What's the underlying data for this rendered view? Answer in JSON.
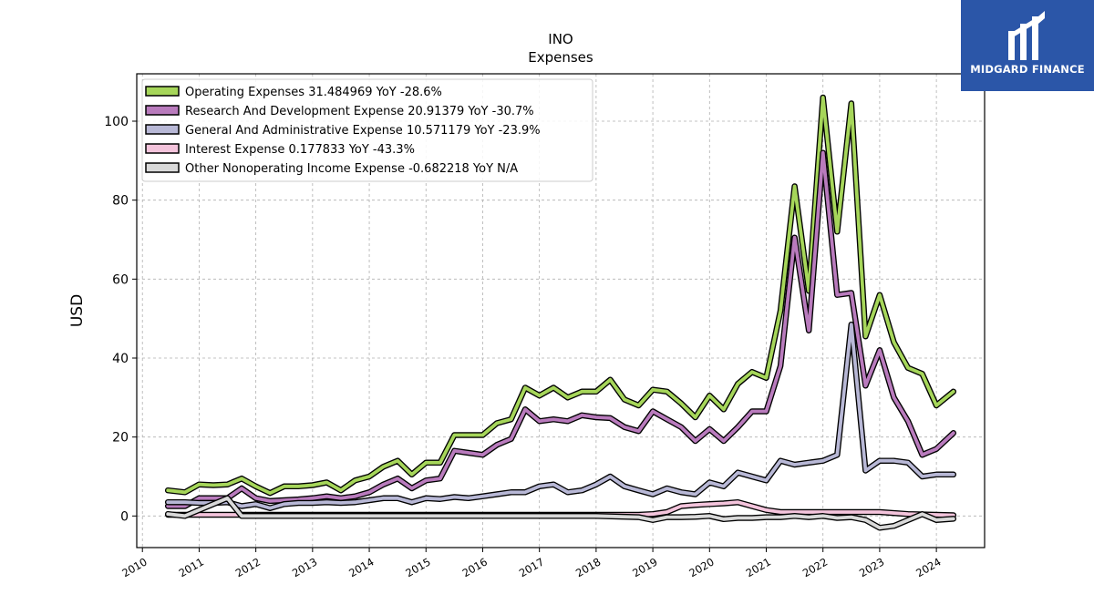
{
  "brand": {
    "name": "MIDGARD FINANCE",
    "color": "#2b56a8"
  },
  "chart_data": {
    "type": "line",
    "title": "INO",
    "subtitle": "Expenses",
    "ylabel": "USD",
    "xlabel": "",
    "xlim": [
      2009.9,
      2024.85
    ],
    "ylim": [
      -8,
      112
    ],
    "yticks": [
      0,
      20,
      40,
      60,
      80,
      100
    ],
    "xticks": [
      "2010",
      "2011",
      "2012",
      "2013",
      "2014",
      "2015",
      "2016",
      "2017",
      "2018",
      "2019",
      "2020",
      "2021",
      "2022",
      "2023",
      "2024"
    ],
    "grid": true,
    "legend_position": "top-left",
    "series": [
      {
        "name": "Operating Expenses  31.484969 YoY -28.6%",
        "color": "#a6d65a",
        "points": [
          [
            2010.45,
            6.5
          ],
          [
            2010.75,
            6.0
          ],
          [
            2011.0,
            8.0
          ],
          [
            2011.25,
            7.8
          ],
          [
            2011.5,
            8.0
          ],
          [
            2011.75,
            9.5
          ],
          [
            2012.0,
            7.5
          ],
          [
            2012.25,
            5.8
          ],
          [
            2012.5,
            7.5
          ],
          [
            2012.75,
            7.5
          ],
          [
            2013.0,
            7.8
          ],
          [
            2013.25,
            8.5
          ],
          [
            2013.5,
            6.5
          ],
          [
            2013.75,
            9.0
          ],
          [
            2014.0,
            10.0
          ],
          [
            2014.25,
            12.5
          ],
          [
            2014.5,
            14.0
          ],
          [
            2014.75,
            10.5
          ],
          [
            2015.0,
            13.5
          ],
          [
            2015.25,
            13.5
          ],
          [
            2015.5,
            20.5
          ],
          [
            2015.75,
            20.5
          ],
          [
            2016.0,
            20.5
          ],
          [
            2016.25,
            23.5
          ],
          [
            2016.5,
            24.5
          ],
          [
            2016.75,
            32.5
          ],
          [
            2017.0,
            30.5
          ],
          [
            2017.25,
            32.5
          ],
          [
            2017.5,
            30.0
          ],
          [
            2017.75,
            31.5
          ],
          [
            2018.0,
            31.5
          ],
          [
            2018.25,
            34.5
          ],
          [
            2018.5,
            29.5
          ],
          [
            2018.75,
            28.0
          ],
          [
            2019.0,
            32.0
          ],
          [
            2019.25,
            31.5
          ],
          [
            2019.5,
            28.5
          ],
          [
            2019.75,
            25.0
          ],
          [
            2020.0,
            30.5
          ],
          [
            2020.25,
            27.0
          ],
          [
            2020.5,
            33.5
          ],
          [
            2020.75,
            36.5
          ],
          [
            2021.0,
            35.0
          ],
          [
            2021.25,
            52.0
          ],
          [
            2021.5,
            83.5
          ],
          [
            2021.75,
            57.0
          ],
          [
            2022.0,
            106.0
          ],
          [
            2022.25,
            72.0
          ],
          [
            2022.5,
            104.5
          ],
          [
            2022.75,
            45.5
          ],
          [
            2023.0,
            56.0
          ],
          [
            2023.25,
            44.0
          ],
          [
            2023.5,
            37.5
          ],
          [
            2023.75,
            36.0
          ],
          [
            2024.0,
            28.0
          ],
          [
            2024.3,
            31.5
          ]
        ]
      },
      {
        "name": "Research And Development Expense  20.91379 YoY -30.7%",
        "color": "#b97bbd",
        "points": [
          [
            2010.45,
            2.5
          ],
          [
            2010.75,
            2.5
          ],
          [
            2011.0,
            4.5
          ],
          [
            2011.25,
            4.5
          ],
          [
            2011.5,
            4.5
          ],
          [
            2011.75,
            7.0
          ],
          [
            2012.0,
            4.5
          ],
          [
            2012.25,
            3.8
          ],
          [
            2012.5,
            4.0
          ],
          [
            2012.75,
            4.2
          ],
          [
            2013.0,
            4.5
          ],
          [
            2013.25,
            5.0
          ],
          [
            2013.5,
            4.5
          ],
          [
            2013.75,
            5.0
          ],
          [
            2014.0,
            6.0
          ],
          [
            2014.25,
            8.0
          ],
          [
            2014.5,
            9.5
          ],
          [
            2014.75,
            7.0
          ],
          [
            2015.0,
            9.0
          ],
          [
            2015.25,
            9.5
          ],
          [
            2015.5,
            16.5
          ],
          [
            2015.75,
            16.0
          ],
          [
            2016.0,
            15.5
          ],
          [
            2016.25,
            18.0
          ],
          [
            2016.5,
            19.5
          ],
          [
            2016.75,
            27.0
          ],
          [
            2017.0,
            24.0
          ],
          [
            2017.25,
            24.5
          ],
          [
            2017.5,
            24.0
          ],
          [
            2017.75,
            25.5
          ],
          [
            2018.0,
            25.0
          ],
          [
            2018.25,
            24.8
          ],
          [
            2018.5,
            22.5
          ],
          [
            2018.75,
            21.5
          ],
          [
            2019.0,
            26.5
          ],
          [
            2019.25,
            24.5
          ],
          [
            2019.5,
            22.5
          ],
          [
            2019.75,
            19.0
          ],
          [
            2020.0,
            22.0
          ],
          [
            2020.25,
            19.0
          ],
          [
            2020.5,
            22.5
          ],
          [
            2020.75,
            26.5
          ],
          [
            2021.0,
            26.5
          ],
          [
            2021.25,
            38.0
          ],
          [
            2021.5,
            70.5
          ],
          [
            2021.75,
            47.0
          ],
          [
            2022.0,
            92.0
          ],
          [
            2022.25,
            56.0
          ],
          [
            2022.5,
            56.5
          ],
          [
            2022.75,
            33.0
          ],
          [
            2023.0,
            42.0
          ],
          [
            2023.25,
            30.0
          ],
          [
            2023.5,
            24.0
          ],
          [
            2023.75,
            15.5
          ],
          [
            2024.0,
            17.0
          ],
          [
            2024.3,
            21.0
          ]
        ]
      },
      {
        "name": "General And Administrative Expense  10.571179 YoY -23.9%",
        "color": "#b8b8d6",
        "points": [
          [
            2010.45,
            3.5
          ],
          [
            2010.75,
            3.5
          ],
          [
            2011.0,
            3.3
          ],
          [
            2011.25,
            3.3
          ],
          [
            2011.5,
            3.5
          ],
          [
            2011.75,
            2.5
          ],
          [
            2012.0,
            3.0
          ],
          [
            2012.25,
            2.0
          ],
          [
            2012.5,
            3.0
          ],
          [
            2012.75,
            3.3
          ],
          [
            2013.0,
            3.3
          ],
          [
            2013.25,
            3.5
          ],
          [
            2013.5,
            3.3
          ],
          [
            2013.75,
            3.5
          ],
          [
            2014.0,
            4.0
          ],
          [
            2014.25,
            4.5
          ],
          [
            2014.5,
            4.5
          ],
          [
            2014.75,
            3.5
          ],
          [
            2015.0,
            4.5
          ],
          [
            2015.25,
            4.3
          ],
          [
            2015.5,
            4.8
          ],
          [
            2015.75,
            4.5
          ],
          [
            2016.0,
            5.0
          ],
          [
            2016.25,
            5.5
          ],
          [
            2016.5,
            6.0
          ],
          [
            2016.75,
            6.0
          ],
          [
            2017.0,
            7.5
          ],
          [
            2017.25,
            8.0
          ],
          [
            2017.5,
            6.0
          ],
          [
            2017.75,
            6.5
          ],
          [
            2018.0,
            8.0
          ],
          [
            2018.25,
            10.0
          ],
          [
            2018.5,
            7.5
          ],
          [
            2018.75,
            6.5
          ],
          [
            2019.0,
            5.5
          ],
          [
            2019.25,
            7.0
          ],
          [
            2019.5,
            6.0
          ],
          [
            2019.75,
            5.5
          ],
          [
            2020.0,
            8.5
          ],
          [
            2020.25,
            7.5
          ],
          [
            2020.5,
            11.0
          ],
          [
            2020.75,
            10.0
          ],
          [
            2021.0,
            9.0
          ],
          [
            2021.25,
            14.0
          ],
          [
            2021.5,
            13.0
          ],
          [
            2021.75,
            13.5
          ],
          [
            2022.0,
            14.0
          ],
          [
            2022.25,
            15.5
          ],
          [
            2022.5,
            48.5
          ],
          [
            2022.75,
            11.5
          ],
          [
            2023.0,
            14.0
          ],
          [
            2023.25,
            14.0
          ],
          [
            2023.5,
            13.5
          ],
          [
            2023.75,
            10.0
          ],
          [
            2024.0,
            10.5
          ],
          [
            2024.3,
            10.5
          ]
        ]
      },
      {
        "name": "Interest Expense  0.177833 YoY -43.3%",
        "color": "#f4c4dc",
        "points": [
          [
            2010.45,
            0.3
          ],
          [
            2011.0,
            0.3
          ],
          [
            2011.5,
            0.3
          ],
          [
            2012.0,
            0.3
          ],
          [
            2013.0,
            0.3
          ],
          [
            2014.0,
            0.3
          ],
          [
            2015.0,
            0.3
          ],
          [
            2016.0,
            0.3
          ],
          [
            2017.0,
            0.3
          ],
          [
            2018.0,
            0.3
          ],
          [
            2018.75,
            0.3
          ],
          [
            2019.0,
            0.5
          ],
          [
            2019.25,
            1.0
          ],
          [
            2019.5,
            2.5
          ],
          [
            2019.75,
            2.8
          ],
          [
            2020.0,
            3.0
          ],
          [
            2020.25,
            3.2
          ],
          [
            2020.5,
            3.5
          ],
          [
            2020.75,
            2.5
          ],
          [
            2021.0,
            1.5
          ],
          [
            2021.25,
            1.0
          ],
          [
            2021.5,
            1.0
          ],
          [
            2022.0,
            1.0
          ],
          [
            2022.5,
            1.0
          ],
          [
            2023.0,
            1.0
          ],
          [
            2023.5,
            0.5
          ],
          [
            2024.0,
            0.3
          ],
          [
            2024.3,
            0.2
          ]
        ]
      },
      {
        "name": "Other Nonoperating Income Expense  -0.682218 YoY N/A",
        "color": "#d9d9d9",
        "points": [
          [
            2010.45,
            0.5
          ],
          [
            2010.75,
            0.0
          ],
          [
            2011.0,
            1.5
          ],
          [
            2011.25,
            3.0
          ],
          [
            2011.5,
            4.5
          ],
          [
            2011.75,
            0.0
          ],
          [
            2012.0,
            0.0
          ],
          [
            2013.0,
            0.0
          ],
          [
            2014.0,
            0.0
          ],
          [
            2015.0,
            0.0
          ],
          [
            2016.0,
            0.0
          ],
          [
            2017.0,
            0.0
          ],
          [
            2018.0,
            0.0
          ],
          [
            2018.75,
            -0.3
          ],
          [
            2019.0,
            -1.0
          ],
          [
            2019.25,
            -0.3
          ],
          [
            2019.5,
            -0.3
          ],
          [
            2019.75,
            -0.2
          ],
          [
            2020.0,
            0.0
          ],
          [
            2020.25,
            -0.8
          ],
          [
            2020.5,
            -0.5
          ],
          [
            2020.75,
            -0.5
          ],
          [
            2021.0,
            -0.3
          ],
          [
            2021.25,
            -0.3
          ],
          [
            2021.5,
            0.0
          ],
          [
            2021.75,
            -0.3
          ],
          [
            2022.0,
            0.0
          ],
          [
            2022.25,
            -0.5
          ],
          [
            2022.5,
            -0.3
          ],
          [
            2022.75,
            -1.0
          ],
          [
            2023.0,
            -3.0
          ],
          [
            2023.25,
            -2.5
          ],
          [
            2023.5,
            -1.0
          ],
          [
            2023.75,
            0.5
          ],
          [
            2024.0,
            -1.0
          ],
          [
            2024.3,
            -0.7
          ]
        ]
      }
    ]
  }
}
